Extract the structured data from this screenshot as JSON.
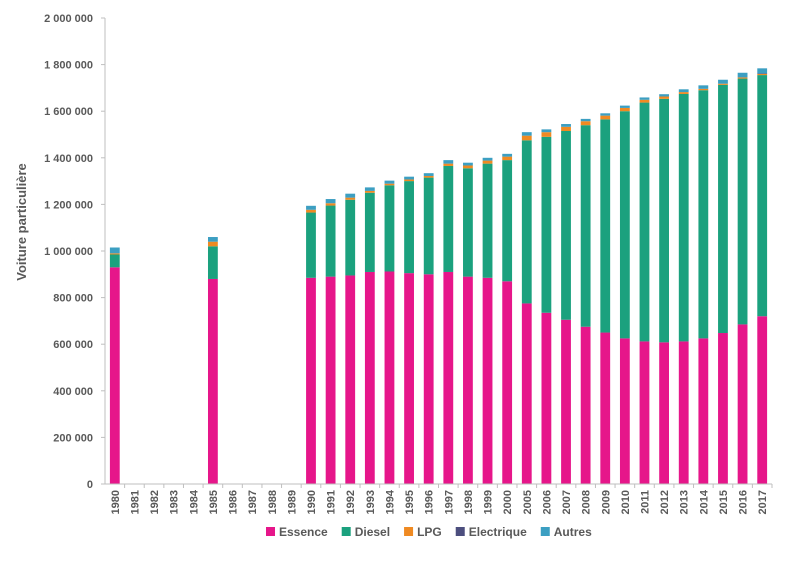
{
  "chart_data": {
    "type": "bar",
    "stacked": true,
    "title": "",
    "xlabel": "",
    "ylabel": "Voiture particulière",
    "ylim": [
      0,
      2000000
    ],
    "yticks": [
      0,
      200000,
      400000,
      600000,
      800000,
      1000000,
      1200000,
      1400000,
      1600000,
      1800000,
      2000000
    ],
    "ytick_labels": [
      "0",
      "200 000",
      "400 000",
      "600 000",
      "800 000",
      "1 000 000",
      "1 200 000",
      "1 400 000",
      "1 600 000",
      "1 800 000",
      "2 000 000"
    ],
    "grid": false,
    "legend_position": "bottom",
    "categories": [
      "1980",
      "1981",
      "1982",
      "1983",
      "1984",
      "1985",
      "1986",
      "1987",
      "1988",
      "1989",
      "1990",
      "1991",
      "1992",
      "1993",
      "1994",
      "1995",
      "1996",
      "1997",
      "1998",
      "1999",
      "2000",
      "2005",
      "2006",
      "2007",
      "2008",
      "2009",
      "2010",
      "2011",
      "2012",
      "2013",
      "2014",
      "2015",
      "2016",
      "2017"
    ],
    "series": [
      {
        "name": "Essence",
        "color": "#e6168a",
        "values": [
          930000,
          null,
          null,
          null,
          null,
          880000,
          null,
          null,
          null,
          null,
          885000,
          890000,
          895000,
          910000,
          912000,
          905000,
          900000,
          910000,
          890000,
          885000,
          870000,
          775000,
          735000,
          705000,
          675000,
          650000,
          625000,
          612000,
          608000,
          612000,
          625000,
          648000,
          685000,
          720000
        ]
      },
      {
        "name": "Diesel",
        "color": "#1ba17e",
        "values": [
          55000,
          null,
          null,
          null,
          null,
          140000,
          null,
          null,
          null,
          null,
          280000,
          305000,
          325000,
          340000,
          370000,
          395000,
          415000,
          455000,
          465000,
          490000,
          520000,
          700000,
          755000,
          810000,
          865000,
          915000,
          975000,
          1025000,
          1045000,
          1062000,
          1065000,
          1065000,
          1055000,
          1035000
        ]
      },
      {
        "name": "LPG",
        "color": "#ef8a22",
        "values": [
          5000,
          null,
          null,
          null,
          null,
          20000,
          null,
          null,
          null,
          null,
          12000,
          10000,
          9000,
          8000,
          7000,
          7000,
          7000,
          10000,
          12000,
          13000,
          15000,
          20000,
          20000,
          18000,
          17000,
          16000,
          14000,
          12000,
          10000,
          8000,
          6000,
          5000,
          5000,
          5000
        ]
      },
      {
        "name": "Electrique",
        "color": "#4c4e7e",
        "values": [
          null,
          null,
          null,
          null,
          null,
          null,
          null,
          null,
          null,
          null,
          null,
          null,
          null,
          null,
          null,
          null,
          null,
          null,
          null,
          null,
          null,
          null,
          null,
          null,
          null,
          null,
          null,
          null,
          null,
          null,
          null,
          null,
          null,
          2000
        ]
      },
      {
        "name": "Autres",
        "color": "#3c9fc2",
        "values": [
          25000,
          null,
          null,
          null,
          null,
          20000,
          null,
          null,
          null,
          null,
          17000,
          18000,
          17000,
          15000,
          13000,
          12000,
          12000,
          15000,
          12000,
          12000,
          12000,
          15000,
          12000,
          12000,
          10000,
          10000,
          10000,
          10000,
          10000,
          12000,
          15000,
          17000,
          20000,
          22000
        ]
      }
    ]
  }
}
